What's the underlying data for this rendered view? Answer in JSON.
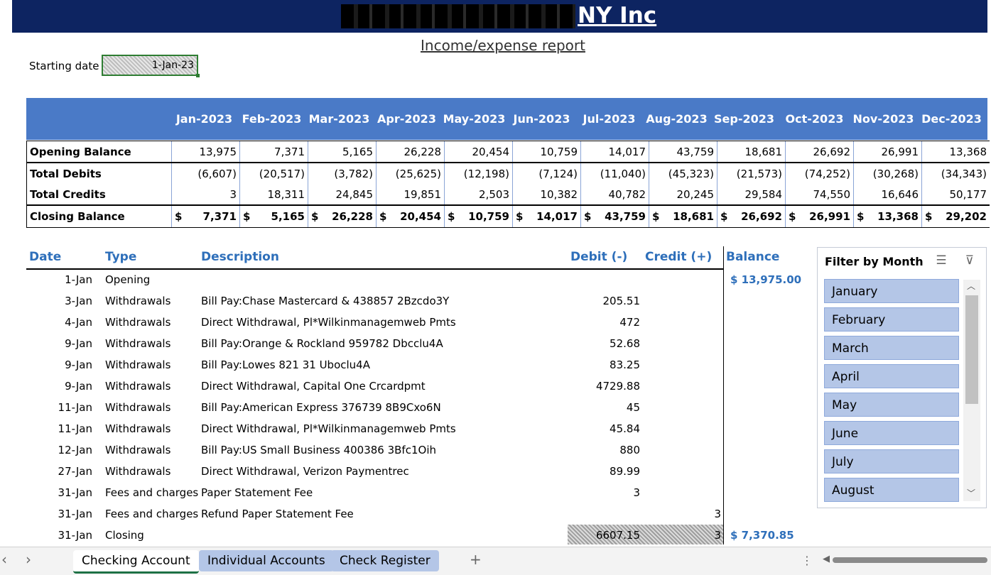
{
  "header": {
    "title": "NY Inc",
    "report_title": "Income/expense report"
  },
  "start": {
    "label": "Starting date",
    "value": "1-Jan-23"
  },
  "summary": {
    "months": [
      "Jan-2023",
      "Feb-2023",
      "Mar-2023",
      "Apr-2023",
      "May-2023",
      "Jun-2023",
      "Jul-2023",
      "Aug-2023",
      "Sep-2023",
      "Oct-2023",
      "Nov-2023",
      "Dec-2023"
    ],
    "rows": [
      {
        "label": "Opening Balance",
        "values": [
          "13,975",
          "7,371",
          "5,165",
          "26,228",
          "20,454",
          "10,759",
          "14,017",
          "43,759",
          "18,681",
          "26,692",
          "26,991",
          "13,368"
        ]
      },
      {
        "label": "Total Debits",
        "values": [
          "(6,607)",
          "(20,517)",
          "(3,782)",
          "(25,625)",
          "(12,198)",
          "(7,124)",
          "(11,040)",
          "(45,323)",
          "(21,573)",
          "(74,252)",
          "(30,268)",
          "(34,343)"
        ]
      },
      {
        "label": "Total Credits",
        "values": [
          "3",
          "18,311",
          "24,845",
          "19,851",
          "2,503",
          "10,382",
          "40,782",
          "20,245",
          "29,584",
          "74,550",
          "16,646",
          "50,177"
        ]
      },
      {
        "label": "Closing Balance",
        "currency": "$",
        "values": [
          "7,371",
          "5,165",
          "26,228",
          "20,454",
          "10,759",
          "14,017",
          "43,759",
          "18,681",
          "26,692",
          "26,991",
          "13,368",
          "29,202"
        ]
      }
    ]
  },
  "ledger": {
    "headers": {
      "date": "Date",
      "type": "Type",
      "description": "Description",
      "debit": "Debit (-)",
      "credit": "Credit (+)",
      "balance": "Balance"
    },
    "rows": [
      {
        "date": "1-Jan",
        "type": "Opening",
        "description": "",
        "debit": "",
        "credit": "",
        "balance": "$  13,975.00"
      },
      {
        "date": "3-Jan",
        "type": "Withdrawals",
        "description": "Bill Pay:Chase Mastercard & 438857 2Bzcdo3Y",
        "debit": "205.51",
        "credit": "",
        "balance": ""
      },
      {
        "date": "4-Jan",
        "type": "Withdrawals",
        "description": "Direct Withdrawal, Pl*Wilkinmanagemweb Pmts",
        "debit": "472",
        "credit": "",
        "balance": ""
      },
      {
        "date": "9-Jan",
        "type": "Withdrawals",
        "description": "Bill Pay:Orange & Rockland 959782 Dbcclu4A",
        "debit": "52.68",
        "credit": "",
        "balance": ""
      },
      {
        "date": "9-Jan",
        "type": "Withdrawals",
        "description": "Bill Pay:Lowes 821 31 Uboclu4A",
        "debit": "83.25",
        "credit": "",
        "balance": ""
      },
      {
        "date": "9-Jan",
        "type": "Withdrawals",
        "description": "Direct Withdrawal, Capital One Crcardpmt",
        "debit": "4729.88",
        "credit": "",
        "balance": ""
      },
      {
        "date": "11-Jan",
        "type": "Withdrawals",
        "description": "Bill Pay:American Express 376739 8B9Cxo6N",
        "debit": "45",
        "credit": "",
        "balance": ""
      },
      {
        "date": "11-Jan",
        "type": "Withdrawals",
        "description": "Direct Withdrawal, Pl*Wilkinmanagemweb Pmts",
        "debit": "45.84",
        "credit": "",
        "balance": ""
      },
      {
        "date": "12-Jan",
        "type": "Withdrawals",
        "description": "Bill Pay:US Small Business 400386 3Bfc1Oih",
        "debit": "880",
        "credit": "",
        "balance": ""
      },
      {
        "date": "27-Jan",
        "type": "Withdrawals",
        "description": "Direct Withdrawal, Verizon Paymentrec",
        "debit": "89.99",
        "credit": "",
        "balance": ""
      },
      {
        "date": "31-Jan",
        "type": "Fees and charges",
        "description": "Paper Statement Fee",
        "debit": "3",
        "credit": "",
        "balance": ""
      },
      {
        "date": "31-Jan",
        "type": "Fees and charges",
        "description": "Refund Paper Statement Fee",
        "debit": "",
        "credit": "3",
        "balance": ""
      },
      {
        "date": "31-Jan",
        "type": "Closing",
        "description": "",
        "debit": "6607.15",
        "credit": "3",
        "balance": "$    7,370.85"
      }
    ]
  },
  "slicer": {
    "title": "Filter by Month",
    "items": [
      "January",
      "February",
      "March",
      "April",
      "May",
      "June",
      "July",
      "August"
    ]
  },
  "tabs": {
    "items": [
      "Checking Account",
      "Individual Accounts",
      "Check Register"
    ],
    "add": "+"
  },
  "colors": {
    "title_bar": "#0d2461",
    "header_band": "#4a7ac7",
    "accent": "#2e6fba",
    "slicer_item": "#b4c6e7"
  }
}
